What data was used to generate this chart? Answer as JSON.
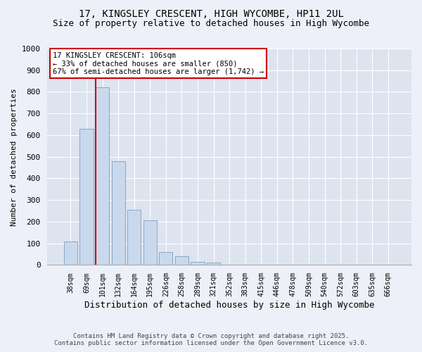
{
  "title1": "17, KINGSLEY CRESCENT, HIGH WYCOMBE, HP11 2UL",
  "title2": "Size of property relative to detached houses in High Wycombe",
  "xlabel": "Distribution of detached houses by size in High Wycombe",
  "ylabel": "Number of detached properties",
  "categories": [
    "38sqm",
    "69sqm",
    "101sqm",
    "132sqm",
    "164sqm",
    "195sqm",
    "226sqm",
    "258sqm",
    "289sqm",
    "321sqm",
    "352sqm",
    "383sqm",
    "415sqm",
    "446sqm",
    "478sqm",
    "509sqm",
    "540sqm",
    "572sqm",
    "603sqm",
    "635sqm",
    "666sqm"
  ],
  "values": [
    110,
    630,
    820,
    480,
    255,
    205,
    60,
    40,
    15,
    10,
    3,
    2,
    1,
    0,
    0,
    0,
    0,
    0,
    0,
    0,
    0
  ],
  "bar_color": "#c9d9ed",
  "bar_edge_color": "#7090b0",
  "highlight_bar_index": 2,
  "highlight_line_color": "#cc0000",
  "ylim": [
    0,
    1000
  ],
  "yticks": [
    0,
    100,
    200,
    300,
    400,
    500,
    600,
    700,
    800,
    900,
    1000
  ],
  "annotation_title": "17 KINGSLEY CRESCENT: 106sqm",
  "annotation_line1": "← 33% of detached houses are smaller (850)",
  "annotation_line2": "67% of semi-detached houses are larger (1,742) →",
  "annotation_box_color": "#cc0000",
  "footer1": "Contains HM Land Registry data © Crown copyright and database right 2025.",
  "footer2": "Contains public sector information licensed under the Open Government Licence v3.0.",
  "bg_color": "#edf0f8",
  "plot_bg_color": "#dde4f0",
  "grid_color": "#ffffff",
  "title1_fontsize": 10,
  "title2_fontsize": 9,
  "ylabel_fontsize": 8,
  "xlabel_fontsize": 9
}
